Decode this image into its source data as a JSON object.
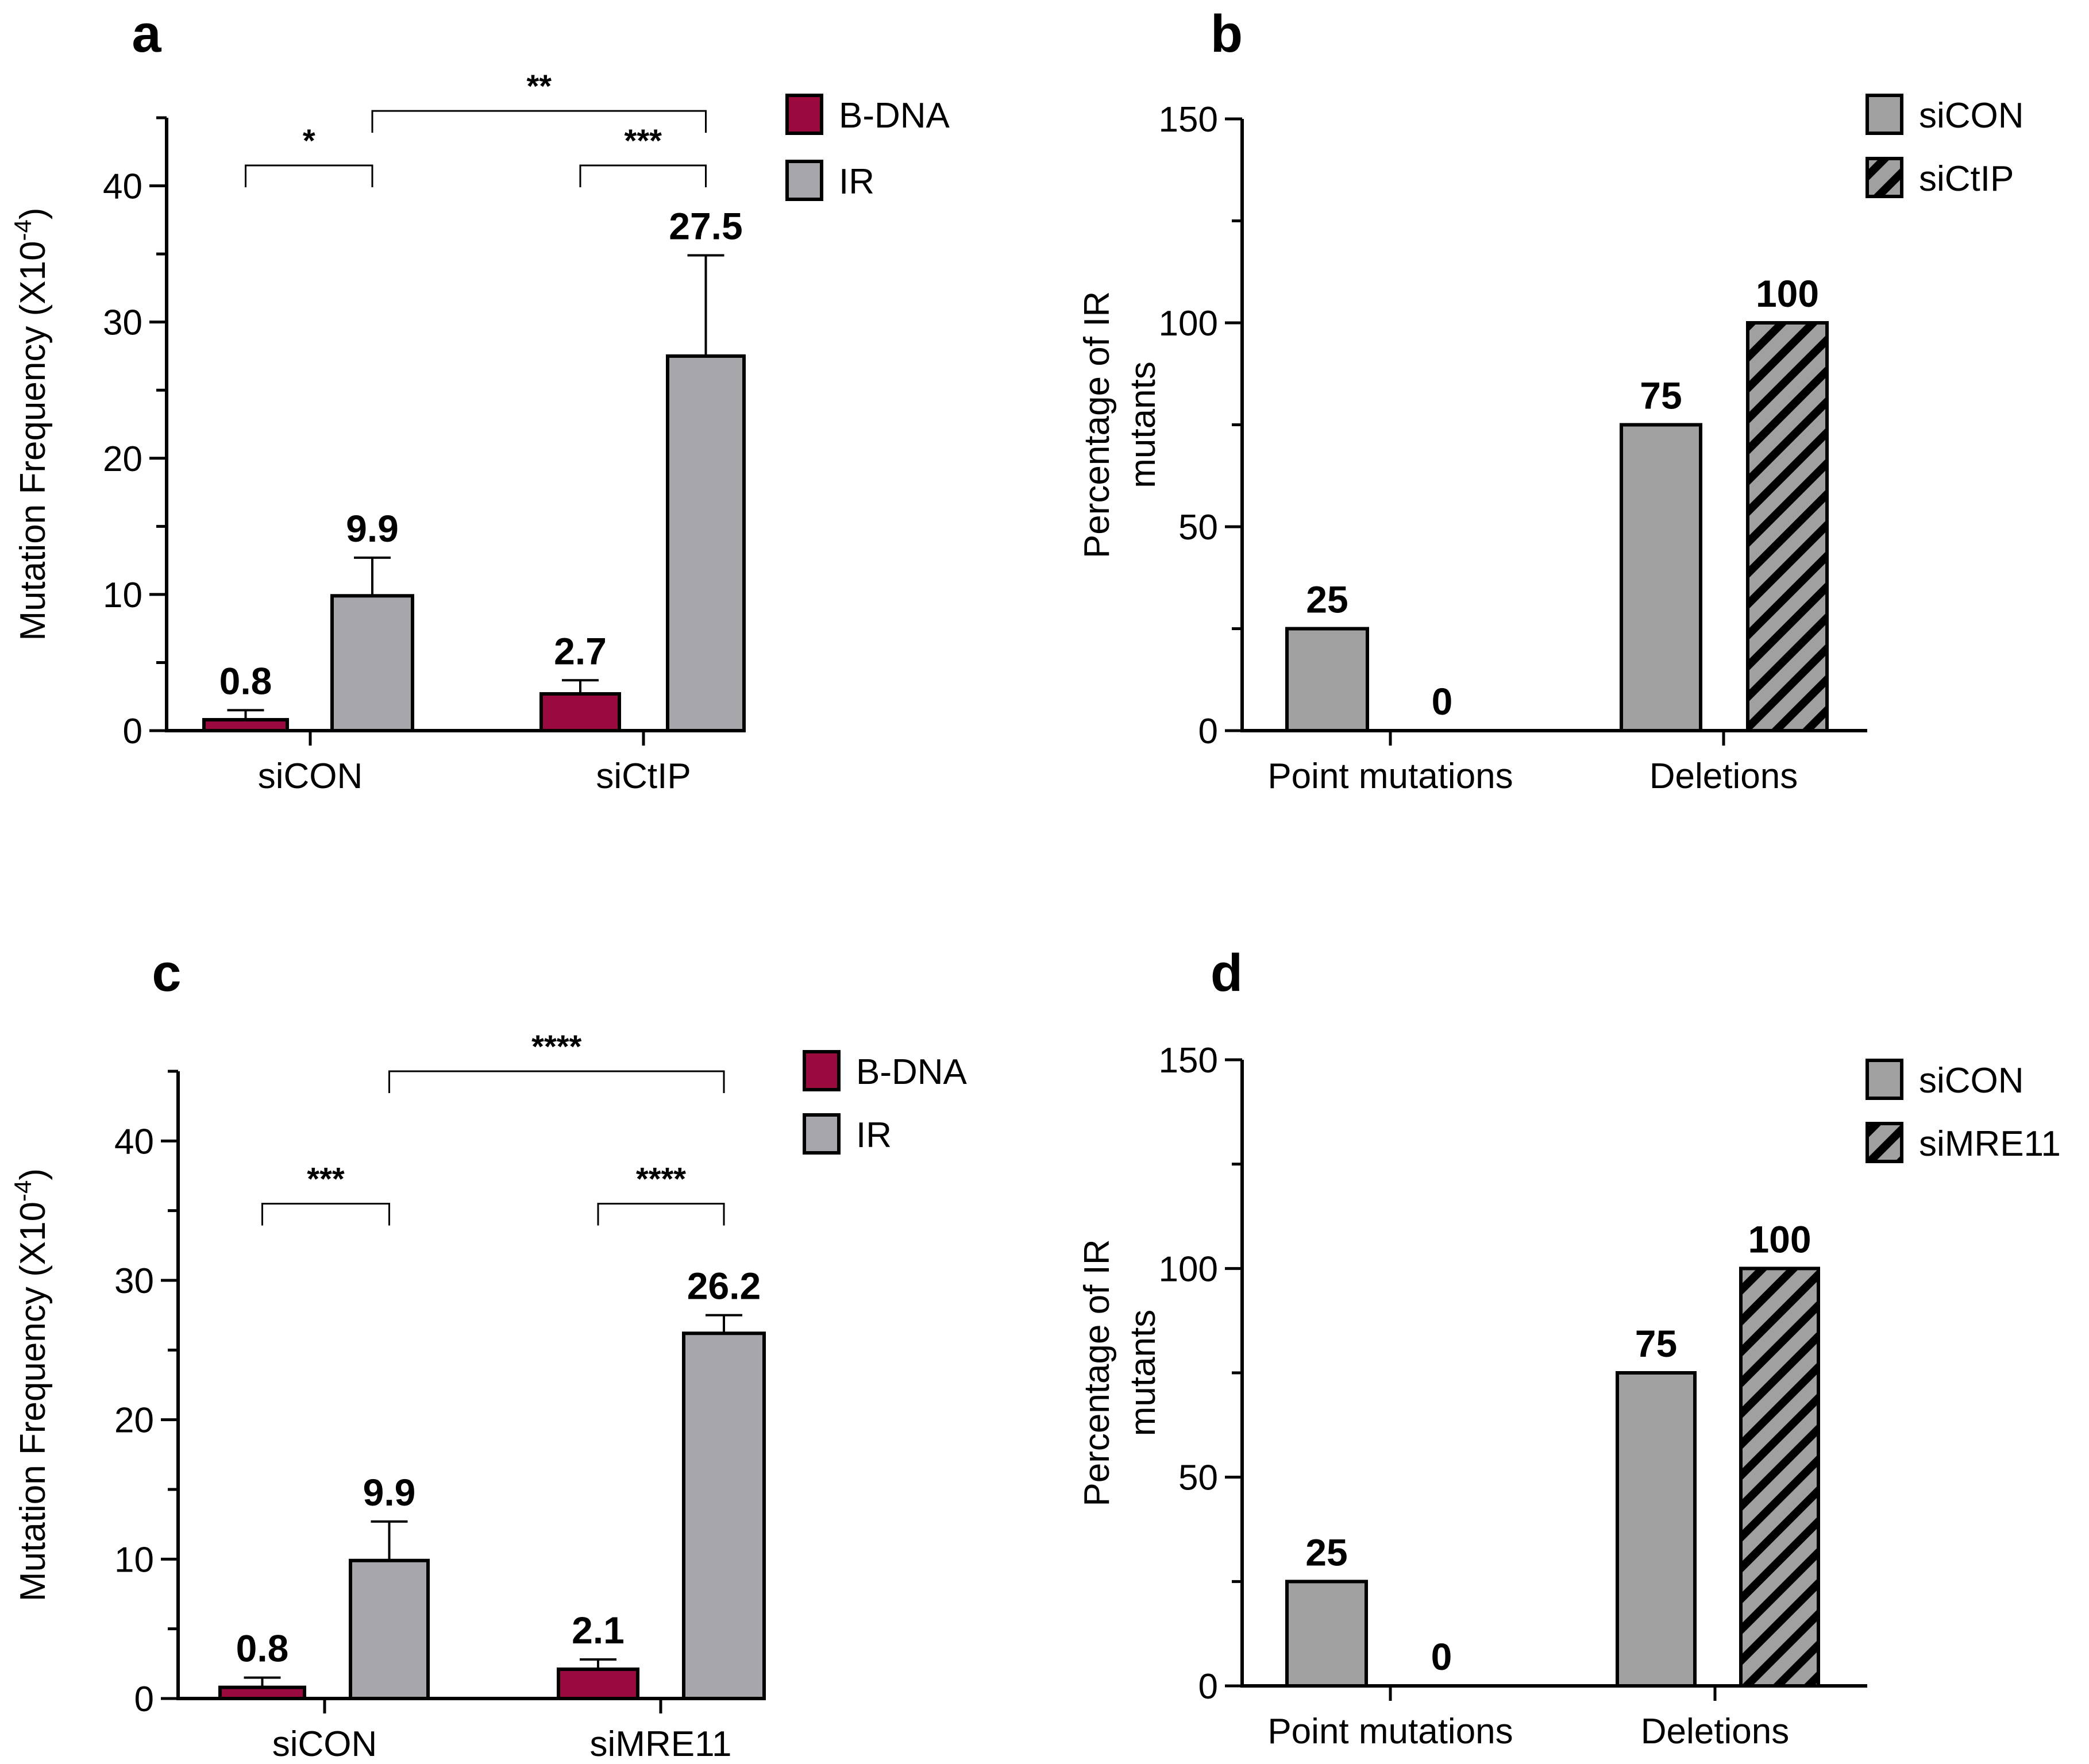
{
  "colors": {
    "bdna": "#9b0a3e",
    "ir": "#a7a7ab",
    "grey": "#a0a0a0",
    "stroke": "#000000",
    "background": "#ffffff"
  },
  "chart_data": [
    {
      "panel": "a",
      "type": "bar",
      "title": "",
      "xlabel": "",
      "ylabel": "Mutation Frequency (X10",
      "ylabel_sup": "-4",
      "ylabel_close": ")",
      "ylim": [
        0,
        45
      ],
      "yticks": [
        0,
        10,
        20,
        30,
        40
      ],
      "legend": "top-right",
      "categories": [
        "siCON",
        "siCtIP"
      ],
      "series": [
        {
          "name": "B-DNA",
          "color": "bdna",
          "pattern": "solid",
          "values": [
            0.8,
            2.7
          ],
          "errors": [
            0.7,
            1.0
          ],
          "labels": [
            "0.8",
            "2.7"
          ]
        },
        {
          "name": "IR",
          "color": "ir",
          "pattern": "solid",
          "values": [
            9.9,
            27.5
          ],
          "errors": [
            2.8,
            7.4
          ],
          "labels": [
            "9.9",
            "27.5"
          ]
        }
      ],
      "significance": [
        {
          "from": [
            0,
            0
          ],
          "to": [
            0,
            1
          ],
          "label": "*",
          "level": 41.5
        },
        {
          "from": [
            0,
            1
          ],
          "to": [
            1,
            1
          ],
          "label": "**",
          "level": 45.5
        },
        {
          "from": [
            1,
            0
          ],
          "to": [
            1,
            1
          ],
          "label": "***",
          "level": 41.5
        }
      ]
    },
    {
      "panel": "b",
      "type": "bar",
      "title": "",
      "xlabel": "",
      "ylabel_lines": [
        "Percentage of IR",
        "mutants"
      ],
      "ylim": [
        0,
        150
      ],
      "yticks": [
        0,
        50,
        100,
        150
      ],
      "legend": "top-right",
      "categories": [
        "Point mutations",
        "Deletions"
      ],
      "series": [
        {
          "name": "siCON",
          "color": "grey",
          "pattern": "solid",
          "values": [
            25,
            75
          ],
          "labels": [
            "25",
            "75"
          ]
        },
        {
          "name": "siCtIP",
          "color": "grey",
          "pattern": "hatched",
          "values": [
            0,
            100
          ],
          "labels": [
            "0",
            "100"
          ]
        }
      ]
    },
    {
      "panel": "c",
      "type": "bar",
      "title": "",
      "xlabel": "",
      "ylabel": "Mutation Frequency (X10",
      "ylabel_sup": "-4",
      "ylabel_close": ")",
      "ylim": [
        0,
        45
      ],
      "yticks": [
        0,
        10,
        20,
        30,
        40
      ],
      "legend": "top-right",
      "categories": [
        "siCON",
        "siMRE11"
      ],
      "series": [
        {
          "name": "B-DNA",
          "color": "bdna",
          "pattern": "solid",
          "values": [
            0.8,
            2.1
          ],
          "errors": [
            0.7,
            0.7
          ],
          "labels": [
            "0.8",
            "2.1"
          ]
        },
        {
          "name": "IR",
          "color": "ir",
          "pattern": "solid",
          "values": [
            9.9,
            26.2
          ],
          "errors": [
            2.8,
            1.3
          ],
          "labels": [
            "9.9",
            "26.2"
          ]
        }
      ],
      "significance": [
        {
          "from": [
            0,
            0
          ],
          "to": [
            0,
            1
          ],
          "label": "***",
          "level": 35.5
        },
        {
          "from": [
            0,
            1
          ],
          "to": [
            1,
            1
          ],
          "label": "****",
          "level": 45
        },
        {
          "from": [
            1,
            0
          ],
          "to": [
            1,
            1
          ],
          "label": "****",
          "level": 35.5
        }
      ]
    },
    {
      "panel": "d",
      "type": "bar",
      "title": "",
      "xlabel": "",
      "ylabel_lines": [
        "Percentage of IR",
        "mutants"
      ],
      "ylim": [
        0,
        150
      ],
      "yticks": [
        0,
        50,
        100,
        150
      ],
      "legend": "top-right",
      "categories": [
        "Point mutations",
        "Deletions"
      ],
      "series": [
        {
          "name": "siCON",
          "color": "grey",
          "pattern": "solid",
          "values": [
            25,
            75
          ],
          "labels": [
            "25",
            "75"
          ]
        },
        {
          "name": "siMRE11",
          "color": "grey",
          "pattern": "hatched",
          "values": [
            0,
            100
          ],
          "labels": [
            "0",
            "100"
          ]
        }
      ]
    }
  ]
}
